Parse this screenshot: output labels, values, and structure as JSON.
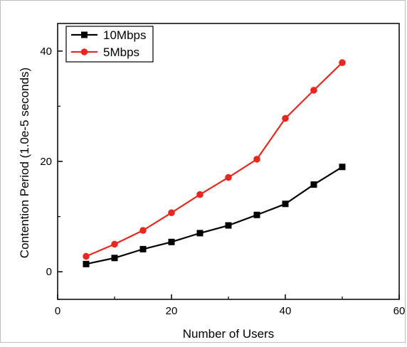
{
  "chart_data": {
    "type": "line",
    "title": "",
    "xlabel": "Number of Users",
    "ylabel": "Contention Period (1.0e-5 seconds)",
    "xlim": [
      0,
      60
    ],
    "ylim": [
      -5,
      45
    ],
    "x_ticks": [
      0,
      20,
      40,
      60
    ],
    "y_ticks": [
      0,
      20,
      40
    ],
    "x_tick_labels": [
      "0",
      "20",
      "40",
      "60"
    ],
    "y_tick_labels": [
      "0",
      "20",
      "40"
    ],
    "grid": false,
    "legend_position": "top-left",
    "series": [
      {
        "name": "10Mbps",
        "color": "#000000",
        "marker": "square",
        "x": [
          5,
          10,
          15,
          20,
          25,
          30,
          35,
          40,
          45,
          50
        ],
        "y": [
          1.4,
          2.5,
          4.1,
          5.4,
          7.0,
          8.4,
          10.3,
          12.3,
          15.8,
          19.0
        ]
      },
      {
        "name": "5Mbps",
        "color": "#e8281e",
        "marker": "circle",
        "x": [
          5,
          10,
          15,
          20,
          25,
          30,
          35,
          40,
          45,
          50
        ],
        "y": [
          2.8,
          5.0,
          7.5,
          10.7,
          14.0,
          17.1,
          20.4,
          27.8,
          32.9,
          37.9
        ]
      }
    ]
  }
}
